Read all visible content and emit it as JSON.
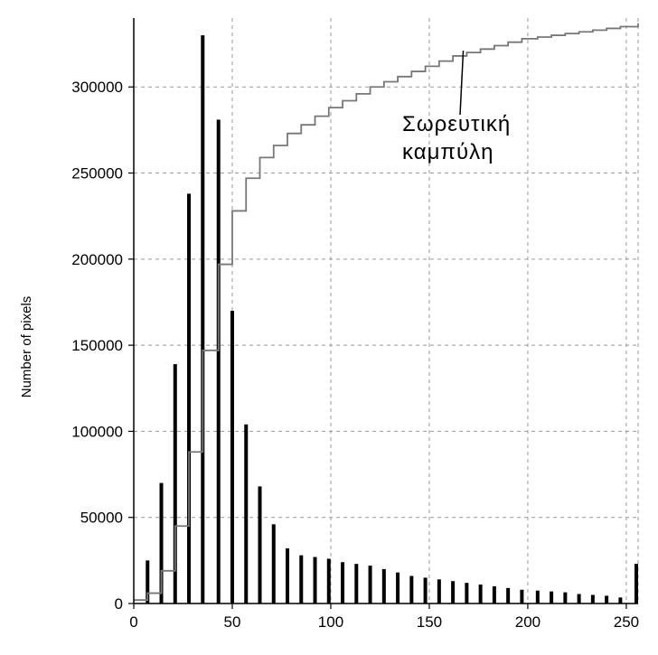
{
  "chart_data": {
    "type": "bar",
    "ylabel": "Number of pixels",
    "xlabel": "",
    "title": "",
    "xlim": [
      0,
      256
    ],
    "ylim": [
      0,
      340000
    ],
    "grid": true,
    "x_ticks": [
      0,
      50,
      100,
      150,
      200,
      250
    ],
    "y_ticks": [
      0,
      50000,
      100000,
      150000,
      200000,
      250000,
      300000
    ],
    "series": [
      {
        "kind": "bar",
        "x": [
          7,
          14,
          21,
          28,
          35,
          43,
          50,
          57,
          64,
          71,
          78,
          85,
          92,
          99,
          106,
          113,
          120,
          127,
          134,
          141,
          148,
          155,
          162,
          169,
          176,
          183,
          190,
          197,
          205,
          212,
          219,
          226,
          233,
          240,
          247,
          256
        ],
        "values": [
          25000,
          70000,
          139000,
          238000,
          330000,
          281000,
          170000,
          104000,
          68000,
          46000,
          32000,
          28000,
          27000,
          26000,
          24000,
          23000,
          22000,
          20000,
          18000,
          16000,
          15000,
          14000,
          13000,
          12000,
          11000,
          10000,
          9000,
          8000,
          7500,
          7000,
          6500,
          5500,
          5000,
          4500,
          3500,
          23000
        ]
      },
      {
        "kind": "cumulative-step",
        "color": "#777777",
        "x": [
          0,
          7,
          14,
          21,
          28,
          35,
          43,
          50,
          57,
          64,
          71,
          78,
          85,
          92,
          99,
          106,
          113,
          120,
          127,
          134,
          141,
          148,
          155,
          162,
          169,
          176,
          183,
          190,
          197,
          205,
          212,
          219,
          226,
          233,
          240,
          247,
          256
        ],
        "values": [
          2000,
          6000,
          19000,
          45000,
          88000,
          147000,
          197000,
          228000,
          247000,
          259000,
          266000,
          273000,
          278000,
          283000,
          288000,
          292000,
          296000,
          300000,
          303000,
          306000,
          309000,
          312000,
          315000,
          318000,
          320000,
          322000,
          324000,
          326000,
          328000,
          329000,
          330000,
          331000,
          332000,
          333000,
          334000,
          335000,
          337000
        ]
      }
    ],
    "annotations": [
      {
        "text_lines": [
          "Σωρευτική",
          "καμπύλη"
        ],
        "points_to": [
          170,
          320000
        ]
      }
    ]
  }
}
